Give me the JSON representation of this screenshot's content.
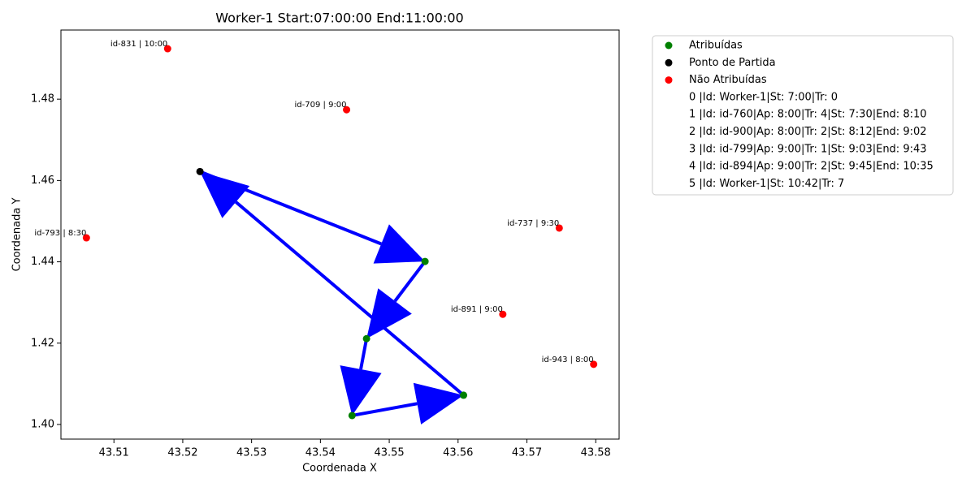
{
  "chart_data": {
    "type": "scatter",
    "title": "Worker-1 Start:07:00:00 End:11:00:00",
    "xlabel": "Coordenada X",
    "ylabel": "Coordenada Y",
    "xlim": [
      43.5023,
      43.5834
    ],
    "ylim": [
      1.3964,
      1.497
    ],
    "xticks": [
      43.51,
      43.52,
      43.53,
      43.54,
      43.55,
      43.56,
      43.57,
      43.58
    ],
    "yticks": [
      {
        "value": 1.4,
        "label": "1.40"
      },
      1.42,
      1.44,
      1.46,
      1.48
    ],
    "series": [
      {
        "name": "Atribuídas",
        "color": "green",
        "x": [
          43.5552,
          43.5467,
          43.5446,
          43.5608
        ],
        "values": [
          1.4401,
          1.4211,
          1.4022,
          1.4072
        ]
      },
      {
        "name": "Ponto de Partida",
        "color": "black",
        "x": [
          43.5225
        ],
        "values": [
          1.4622
        ]
      },
      {
        "name": "Não Atribuídas",
        "color": "red",
        "x": [
          43.5178,
          43.5438,
          43.506,
          43.5747,
          43.5665,
          43.5797
        ],
        "values": [
          1.4924,
          1.4774,
          1.4459,
          1.4483,
          1.4271,
          1.4148
        ],
        "labels": [
          "id-831 | 10:00",
          "id-709 | 9:00",
          "id-793 | 8:30",
          "id-737 | 9:30",
          "id-891 | 9:00",
          "id-943 | 8:00"
        ]
      }
    ],
    "arrow_color": "blue",
    "legend_notes": [
      "0 |Id: Worker-1|St: 7:00|Tr: 0",
      "1 |Id: id-760|Ap: 8:00|Tr: 4|St: 7:30|End: 8:10",
      "2 |Id: id-900|Ap: 8:00|Tr: 2|St: 8:12|End: 9:02",
      "3 |Id: id-799|Ap: 9:00|Tr: 1|St: 9:03|End: 9:43",
      "4 |Id: id-894|Ap: 9:00|Tr: 2|St: 9:45|End: 10:35",
      "5 |Id: Worker-1|St: 10:42|Tr: 7"
    ]
  }
}
